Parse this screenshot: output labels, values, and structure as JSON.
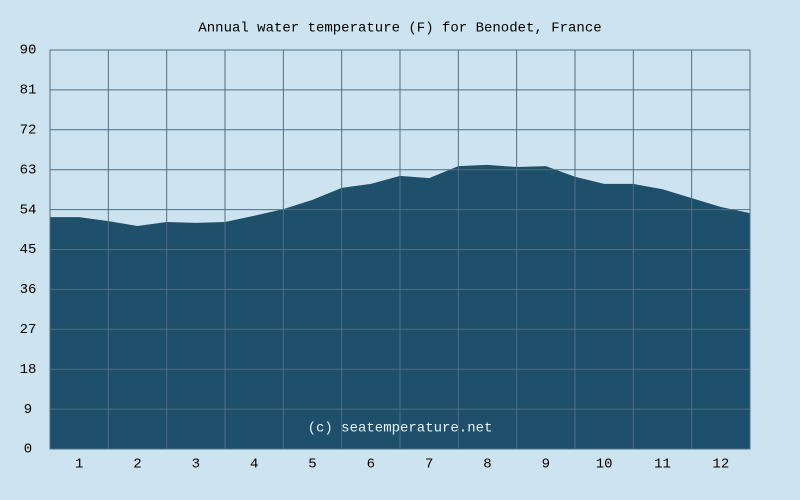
{
  "chart_data": {
    "type": "area",
    "title": "Annual water temperature (F) for Benodet, France",
    "annotation": "(c) seatemperature.net",
    "x": [
      0.5,
      1,
      1.5,
      2,
      2.5,
      3,
      3.5,
      4,
      4.5,
      5,
      5.5,
      6,
      6.5,
      7,
      7.5,
      8,
      8.5,
      9,
      9.5,
      10,
      10.5,
      11,
      11.5,
      12,
      12.5
    ],
    "values": [
      52.3,
      52.3,
      51.4,
      50.3,
      51.2,
      51.0,
      51.2,
      52.6,
      54.1,
      56.2,
      58.9,
      59.8,
      61.6,
      61.1,
      63.8,
      64.1,
      63.6,
      63.8,
      61.4,
      59.8,
      59.8,
      58.6,
      56.6,
      54.6,
      53.2
    ],
    "color": "#1e4f6b",
    "xlim": [
      0.5,
      12.5
    ],
    "xticks": [
      1,
      2,
      3,
      4,
      5,
      6,
      7,
      8,
      9,
      10,
      11,
      12
    ],
    "ylim": [
      0,
      90
    ],
    "yticks": [
      0,
      9,
      18,
      27,
      36,
      45,
      54,
      63,
      72,
      81,
      90
    ],
    "grid": true
  }
}
